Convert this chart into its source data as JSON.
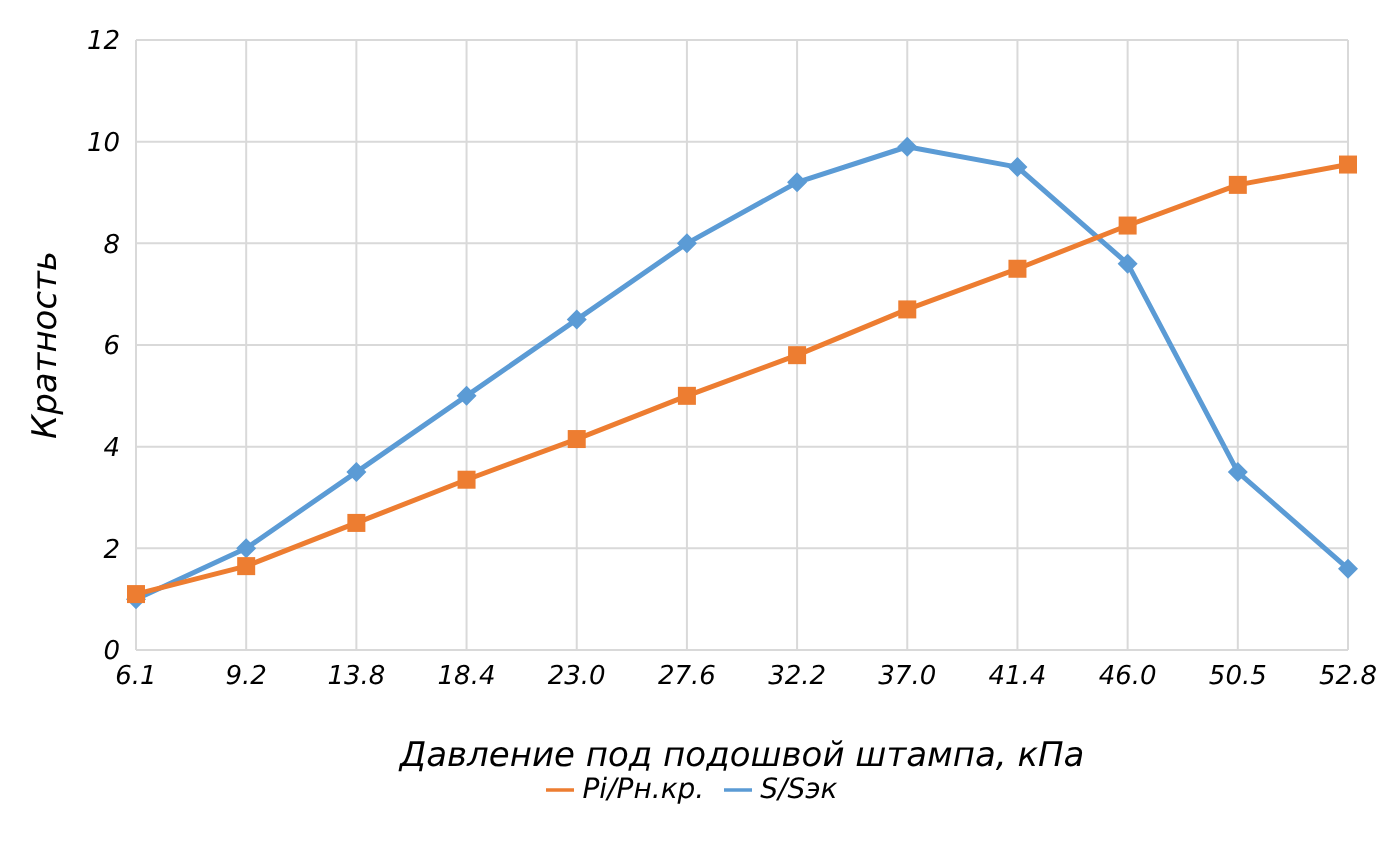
{
  "chart_data": {
    "type": "line",
    "xlabel": "Давление под подошвой штампа, кПа",
    "ylabel": "Кратность",
    "categories": [
      "6.1",
      "9.2",
      "13.8",
      "18.4",
      "23.0",
      "27.6",
      "32.2",
      "37.0",
      "41.4",
      "46.0",
      "50.5",
      "52.8"
    ],
    "series": [
      {
        "name": "S/Sэк",
        "color": "#5b9bd5",
        "marker": "diamond",
        "values": [
          1.0,
          2.0,
          3.5,
          5.0,
          6.5,
          8.0,
          9.2,
          9.9,
          9.5,
          7.6,
          3.5,
          1.6
        ]
      },
      {
        "name": "Pi/Pн.кр.",
        "color": "#ed7d31",
        "marker": "square",
        "values": [
          1.1,
          1.65,
          2.5,
          3.35,
          4.15,
          5.0,
          5.8,
          6.7,
          7.5,
          8.35,
          9.15,
          9.55
        ]
      }
    ],
    "ylim": [
      0,
      12
    ],
    "yticks": [
      0,
      2,
      4,
      6,
      8,
      10,
      12
    ],
    "grid": true,
    "legend": "bottom"
  }
}
